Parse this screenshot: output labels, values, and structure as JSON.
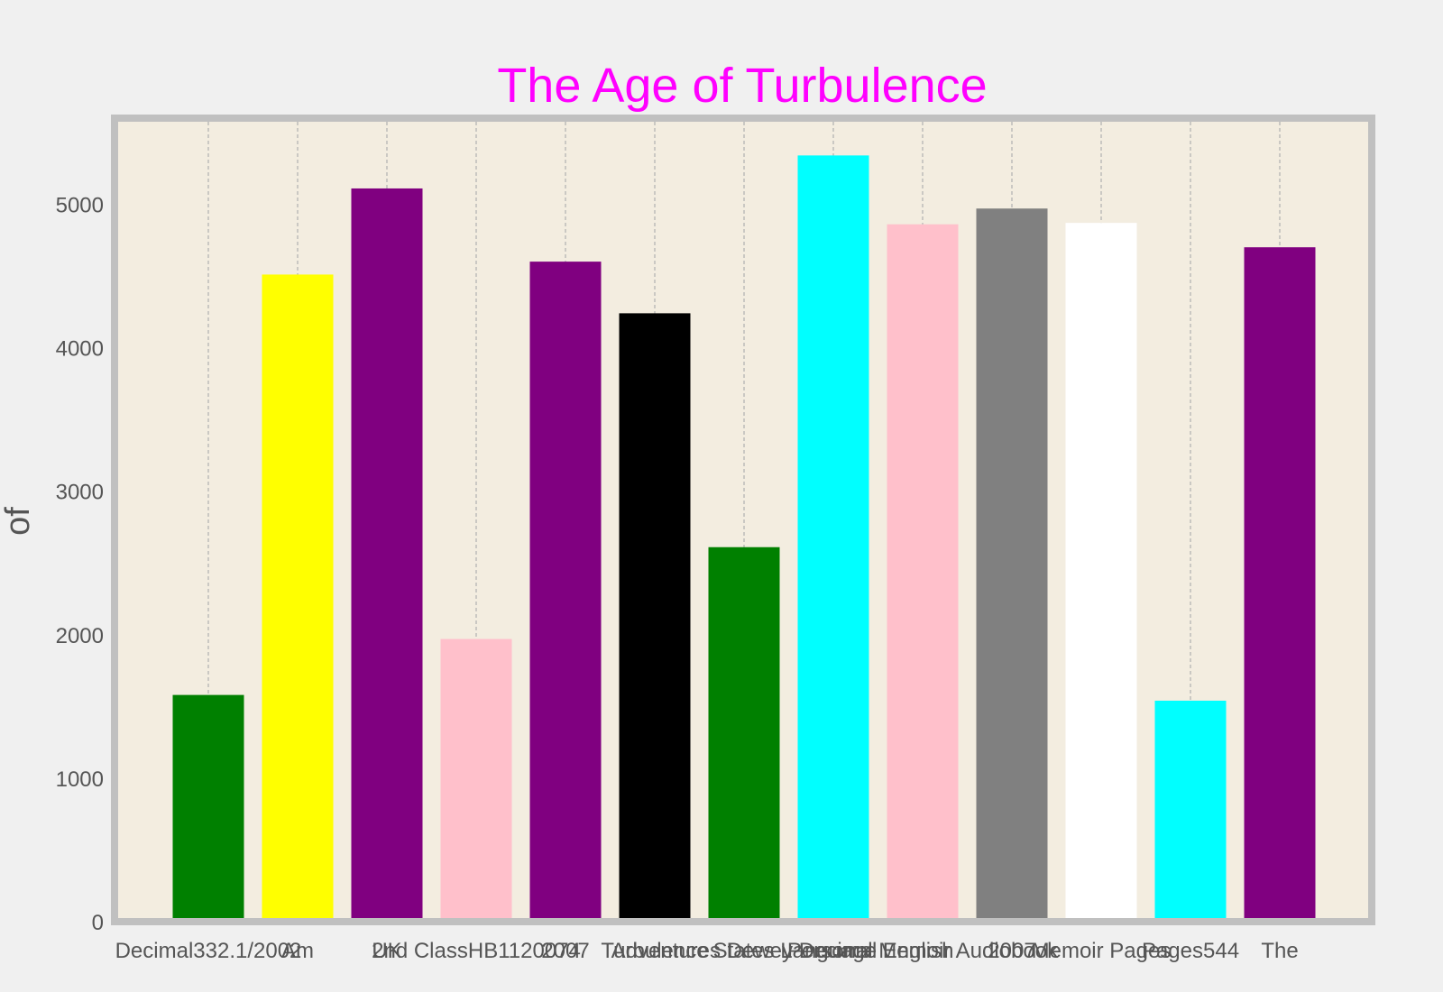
{
  "chart_data": {
    "type": "bar",
    "title": "The Age of Turbulence",
    "title_color": "#ff00ff",
    "xlabel": "",
    "ylabel": "of",
    "ylim": [
      0,
      5600
    ],
    "yticks": [
      0,
      1000,
      2000,
      3000,
      4000,
      5000
    ],
    "grid": "x-only dashed",
    "background_color": "#f3ede0",
    "frame_color": "#c0c0c0",
    "categories": [
      "Decimal332.1/2002",
      "Am",
      "UK",
      "2nd ClassHB1120074",
      "2007",
      "Turbulence",
      "Adventures Dewey Decimal",
      "States Language English",
      "Personal Memoir Audiobook",
      "2007",
      "Memoir Pages",
      "Pages544",
      "The"
    ],
    "values": [
      1580,
      4510,
      5110,
      1970,
      4600,
      4240,
      2610,
      5340,
      4860,
      4970,
      4870,
      1540,
      4700
    ],
    "colors": [
      "#008000",
      "#ffff00",
      "#800080",
      "#ffc0cb",
      "#800080",
      "#000000",
      "#008000",
      "#00ffff",
      "#ffc0cb",
      "#808080",
      "#ffffff",
      "#00ffff",
      "#800080"
    ]
  }
}
